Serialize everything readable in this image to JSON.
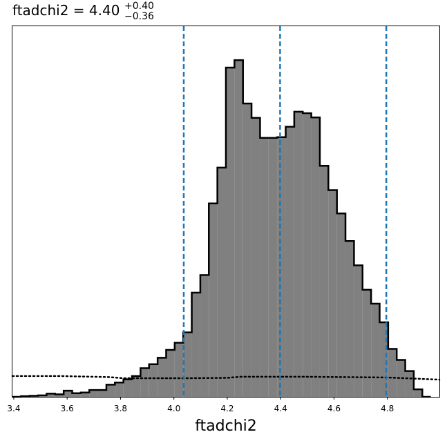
{
  "chart_data": {
    "type": "histogram",
    "title": {
      "param": "ftadchi2",
      "equals": " = ",
      "median": "4.40",
      "plus": "+0.40",
      "minus": "−0.36"
    },
    "xlabel": "ftadchi2",
    "ylabel": "",
    "xlim": [
      3.395,
      4.995
    ],
    "ylim": [
      0,
      1.0
    ],
    "xticks": [
      "3.4",
      "3.6",
      "3.8",
      "4.0",
      "4.2",
      "4.4",
      "4.6",
      "4.8"
    ],
    "grid": false,
    "legend": "none",
    "histogram": {
      "bin_start": 3.395,
      "bin_width": 0.032,
      "counts": [
        0.0,
        0.002,
        0.003,
        0.004,
        0.009,
        0.007,
        0.017,
        0.01,
        0.012,
        0.019,
        0.019,
        0.034,
        0.04,
        0.049,
        0.058,
        0.08,
        0.091,
        0.109,
        0.131,
        0.151,
        0.18,
        0.291,
        0.34,
        0.54,
        0.64,
        0.919,
        0.94,
        0.819,
        0.779,
        0.723,
        0.723,
        0.725,
        0.754,
        0.796,
        0.792,
        0.78,
        0.645,
        0.577,
        0.512,
        0.435,
        0.367,
        0.299,
        0.26,
        0.208,
        0.134,
        0.103,
        0.072,
        0.021,
        0.0
      ]
    },
    "prior_line": {
      "style": "dotted",
      "x": [
        3.395,
        3.58,
        3.76,
        3.81,
        4.05,
        4.2,
        4.25,
        4.5,
        4.8,
        4.995
      ],
      "y": [
        0.058,
        0.058,
        0.055,
        0.052,
        0.052,
        0.053,
        0.056,
        0.056,
        0.054,
        0.048
      ]
    },
    "quantile_lines": {
      "style": "dashed",
      "x": [
        4.037,
        4.398,
        4.796
      ]
    },
    "colors": {
      "fill": "#808080",
      "edge": "#000000",
      "quantile": "#1f77b4",
      "prior": "#000000"
    }
  }
}
